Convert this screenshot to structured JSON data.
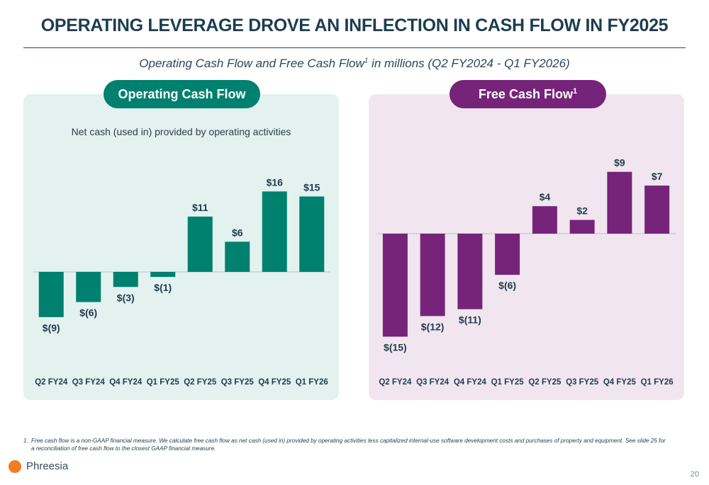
{
  "title": "OPERATING LEVERAGE DROVE AN INFLECTION IN CASH FLOW IN FY2025",
  "subtitle": {
    "before": "Operating Cash Flow and Free Cash Flow",
    "sup": "1",
    "after": " in millions (Q2 FY2024 - Q1 FY2026)"
  },
  "panels": {
    "ocf": {
      "pill": "Operating Cash Flow",
      "note": "Net cash (used in) provided by operating activities"
    },
    "fcf": {
      "pill": "Free Cash Flow",
      "sup": "1"
    }
  },
  "chart_data": [
    {
      "type": "bar",
      "title": "Operating Cash Flow",
      "subtitle": "Net cash (used in) provided by operating activities",
      "categories": [
        "Q2 FY24",
        "Q3 FY24",
        "Q4 FY24",
        "Q1 FY25",
        "Q2 FY25",
        "Q3 FY25",
        "Q4 FY25",
        "Q1 FY26"
      ],
      "values": [
        -9,
        -6,
        -3,
        -1,
        11,
        6,
        16,
        15
      ],
      "labels": [
        "$(9)",
        "$(6)",
        "$(3)",
        "$(1)",
        "$11",
        "$6",
        "$16",
        "$15"
      ],
      "color": "#00806f",
      "ylim": [
        -9,
        16
      ],
      "grid": false
    },
    {
      "type": "bar",
      "title": "Free Cash Flow",
      "categories": [
        "Q2 FY24",
        "Q3 FY24",
        "Q4 FY24",
        "Q1 FY25",
        "Q2 FY25",
        "Q3 FY25",
        "Q4 FY25",
        "Q1 FY26"
      ],
      "values": [
        -15,
        -12,
        -11,
        -6,
        4,
        2,
        9,
        7
      ],
      "labels": [
        "$(15)",
        "$(12)",
        "$(11)",
        "$(6)",
        "$4",
        "$2",
        "$9",
        "$7"
      ],
      "color": "#76247a",
      "ylim": [
        -15,
        9
      ],
      "grid": false
    }
  ],
  "footnote": {
    "number": "1.",
    "text": "Free cash flow is a non-GAAP financial measure. We calculate free cash flow as net cash (used in) provided by operating activities less capitalized internal-use software development costs and purchases of property and equipment. See slide 25 for a reconciliation of free cash flow to the closest GAAP financial measure."
  },
  "logo": {
    "name": "Phreesia",
    "icon": "orange-dot-logo",
    "color": "#f47b20"
  },
  "page_number": "20"
}
